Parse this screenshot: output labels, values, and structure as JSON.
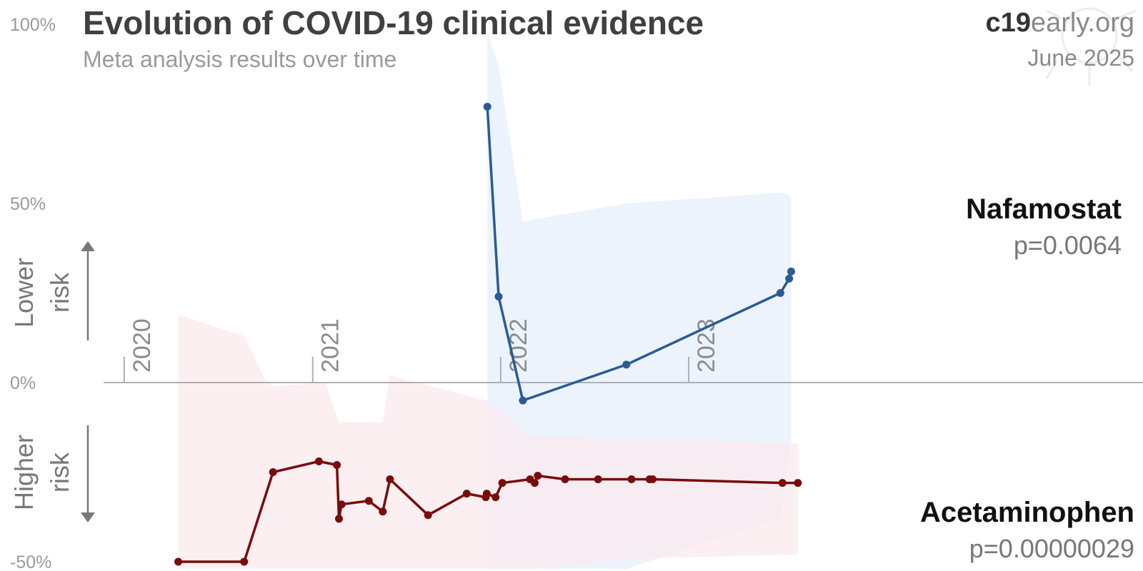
{
  "header": {
    "title": "Evolution of COVID-19 clinical evidence",
    "subtitle": "Meta analysis results over time"
  },
  "brand": {
    "bold": "c19",
    "light": "early.org",
    "date": "June 2025"
  },
  "risk_labels": {
    "lower_line1": "Lower",
    "lower_line2": "risk",
    "higher_line1": "Higher",
    "higher_line2": "risk"
  },
  "colors": {
    "nafamostat": "#2a5b94",
    "acetaminophen": "#7a0b0b",
    "nafamostat_band": "#e6effc",
    "acetaminophen_band": "#fbeaee",
    "axis": "#b0b0b0"
  },
  "chart_data": {
    "type": "line",
    "title": "Evolution of COVID-19 clinical evidence",
    "subtitle": "Meta analysis results over time",
    "y_ticks": [
      "100%",
      "50%",
      "0%",
      "-50%"
    ],
    "x_ticks": [
      "2020",
      "2021",
      "2022",
      "2023"
    ],
    "ylim": [
      -52,
      102
    ],
    "xlim": [
      "2019-11-22",
      "2025-06-01"
    ],
    "grid": false,
    "series": [
      {
        "name": "Nafamostat",
        "p_label": "p=0.0064",
        "points": [
          [
            "2021-12-06",
            77
          ],
          [
            "2021-12-28",
            24
          ],
          [
            "2022-02-13",
            -5
          ],
          [
            "2022-09-02",
            5
          ],
          [
            "2023-06-28",
            25
          ],
          [
            "2023-07-15",
            29
          ],
          [
            "2023-07-19",
            31
          ]
        ],
        "ci": {
          "x": [
            "2021-12-06",
            "2021-12-28",
            "2022-02-13",
            "2022-09-02",
            "2023-06-28",
            "2023-07-19"
          ],
          "upper": [
            98,
            88,
            45,
            50,
            53,
            52
          ],
          "lower": [
            -52,
            -52,
            -52,
            -52,
            -38,
            -18
          ]
        }
      },
      {
        "name": "Acetaminophen",
        "p_label": "p=0.00000029",
        "points": [
          [
            "2020-04-15",
            -50
          ],
          [
            "2020-08-21",
            -50
          ],
          [
            "2020-10-16",
            -25
          ],
          [
            "2021-01-13",
            -22
          ],
          [
            "2021-02-17",
            -23
          ],
          [
            "2021-02-21",
            -38
          ],
          [
            "2021-02-26",
            -34
          ],
          [
            "2021-04-20",
            -33
          ],
          [
            "2021-05-17",
            -36
          ],
          [
            "2021-05-31",
            -27
          ],
          [
            "2021-08-13",
            -37
          ],
          [
            "2021-10-27",
            -31
          ],
          [
            "2021-12-03",
            -32
          ],
          [
            "2021-12-05",
            -31
          ],
          [
            "2021-12-22",
            -32
          ],
          [
            "2022-01-04",
            -28
          ],
          [
            "2022-02-27",
            -27
          ],
          [
            "2022-03-08",
            -28
          ],
          [
            "2022-03-14",
            -26
          ],
          [
            "2022-05-06",
            -27
          ],
          [
            "2022-07-09",
            -27
          ],
          [
            "2022-09-12",
            -27
          ],
          [
            "2022-10-17",
            -27
          ],
          [
            "2022-10-23",
            -27
          ],
          [
            "2023-07-02",
            -28
          ],
          [
            "2023-08-01",
            -28
          ]
        ],
        "ci": {
          "x": [
            "2020-04-15",
            "2020-08-21",
            "2020-09-30",
            "2020-10-16",
            "2021-01-25",
            "2021-02-21",
            "2021-05-17",
            "2021-05-31",
            "2021-12-05",
            "2022-02-27",
            "2022-05-31",
            "2022-07-09",
            "2022-10-23",
            "2023-08-01"
          ],
          "upper": [
            19,
            13,
            1,
            -1,
            0,
            -11,
            -11,
            2,
            -5,
            -15,
            -15,
            -16,
            -16,
            -17
          ],
          "lower": [
            -52,
            -52,
            -52,
            -52,
            -52,
            -52,
            -52,
            -52,
            -52,
            -52,
            -51,
            -50,
            -49,
            -48
          ]
        }
      }
    ]
  }
}
